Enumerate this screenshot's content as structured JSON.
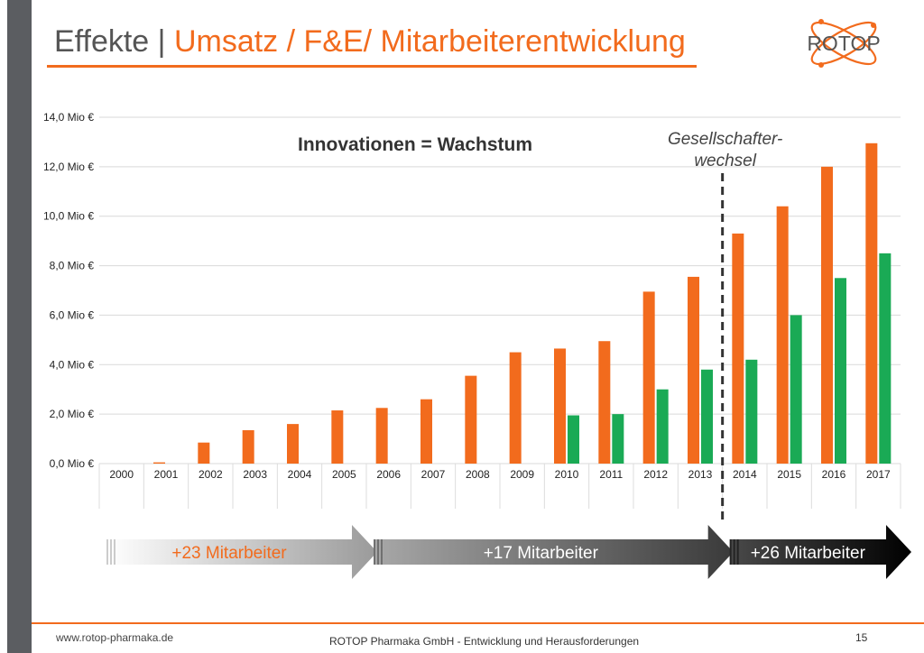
{
  "slide": {
    "title_prefix": "Effekte | ",
    "title_accent": "Umsatz / F&E/ Mitarbeiterentwicklung",
    "logo_text": "ROTOP",
    "footer_website": "www.rotop-pharmaka.de",
    "footer_center": "ROTOP Pharmaka GmbH  -  Entwicklung und Herausforderungen",
    "page_number": "15",
    "colors": {
      "accent": "#f26b1d",
      "green": "#1aaa55",
      "gray": "#5b5d61"
    }
  },
  "chart_data": {
    "type": "bar",
    "title": "Innovationen = Wachstum",
    "annotation": "Gesellschafter-\nwechsel",
    "categories": [
      "2000",
      "2001",
      "2002",
      "2003",
      "2004",
      "2005",
      "2006",
      "2007",
      "2008",
      "2009",
      "2010",
      "2011",
      "2012",
      "2013",
      "2014",
      "2015",
      "2016",
      "2017"
    ],
    "series": [
      {
        "color": "#f26b1d",
        "values": [
          0,
          0.05,
          0.85,
          1.35,
          1.6,
          2.15,
          2.25,
          2.6,
          3.55,
          4.5,
          4.65,
          4.95,
          6.95,
          7.55,
          9.3,
          10.4,
          12.0,
          12.95
        ]
      },
      {
        "color": "#1aaa55",
        "values": [
          0,
          0,
          0,
          0,
          0,
          0,
          0,
          0,
          0,
          0,
          1.95,
          2.0,
          3.0,
          3.8,
          4.2,
          6.0,
          7.5,
          8.5
        ]
      }
    ],
    "yticks": [
      "0,0 Mio €",
      "2,0 Mio €",
      "4,0 Mio €",
      "6,0 Mio €",
      "8,0 Mio €",
      "10,0 Mio €",
      "12,0 Mio €",
      "14,0 Mio €"
    ],
    "ylim": [
      0,
      14
    ],
    "divider_between": [
      "2013",
      "2014"
    ],
    "grid": true,
    "arrows": [
      {
        "label": "+23 Mitarbeiter",
        "from": "2000",
        "to": "2005",
        "color_start": "#ffffff",
        "color_end": "#9a9a9a",
        "text_color": "#f26b1d"
      },
      {
        "label": "+17 Mitarbeiter",
        "from": "2006",
        "to": "2013",
        "color_start": "#a8a8a8",
        "color_end": "#3a3a3a",
        "text_color": "#ffffff"
      },
      {
        "label": "+26 Mitarbeiter",
        "from": "2014",
        "to": "2017",
        "color_start": "#4a4a4a",
        "color_end": "#000000",
        "text_color": "#ffffff"
      }
    ]
  }
}
